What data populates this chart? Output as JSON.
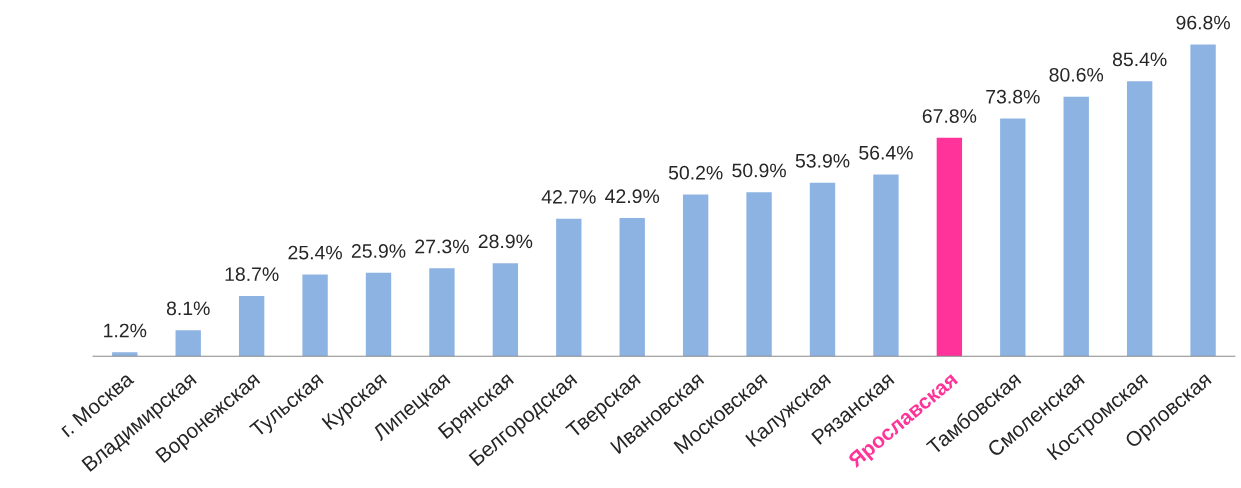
{
  "chart_data": {
    "type": "bar",
    "categories": [
      "г. Москва",
      "Владимирская",
      "Воронежская",
      "Тульская",
      "Курская",
      "Липецкая",
      "Брянская",
      "Белгородская",
      "Тверская",
      "Ивановская",
      "Московская",
      "Калужская",
      "Рязанская",
      "Ярославская",
      "Тамбовская",
      "Смоленская",
      "Костромская",
      "Орловская"
    ],
    "values": [
      1.2,
      8.1,
      18.7,
      25.4,
      25.9,
      27.3,
      28.9,
      42.7,
      42.9,
      50.2,
      50.9,
      53.9,
      56.4,
      67.8,
      73.8,
      80.6,
      85.4,
      96.8
    ],
    "colors": [
      "#8db3e2",
      "#8db3e2",
      "#8db3e2",
      "#8db3e2",
      "#8db3e2",
      "#8db3e2",
      "#8db3e2",
      "#8db3e2",
      "#8db3e2",
      "#8db3e2",
      "#8db3e2",
      "#8db3e2",
      "#8db3e2",
      "#ff3399",
      "#8db3e2",
      "#8db3e2",
      "#8db3e2",
      "#8db3e2"
    ],
    "value_labels": [
      "1.2%",
      "8.1%",
      "18.7%",
      "25.4%",
      "25.9%",
      "27.3%",
      "28.9%",
      "42.7%",
      "42.9%",
      "50.2%",
      "50.9%",
      "53.9%",
      "56.4%",
      "67.8%",
      "73.8%",
      "80.6%",
      "85.4%",
      "96.8%"
    ],
    "tick_labels": "x",
    "grid": false,
    "legend": false
  }
}
